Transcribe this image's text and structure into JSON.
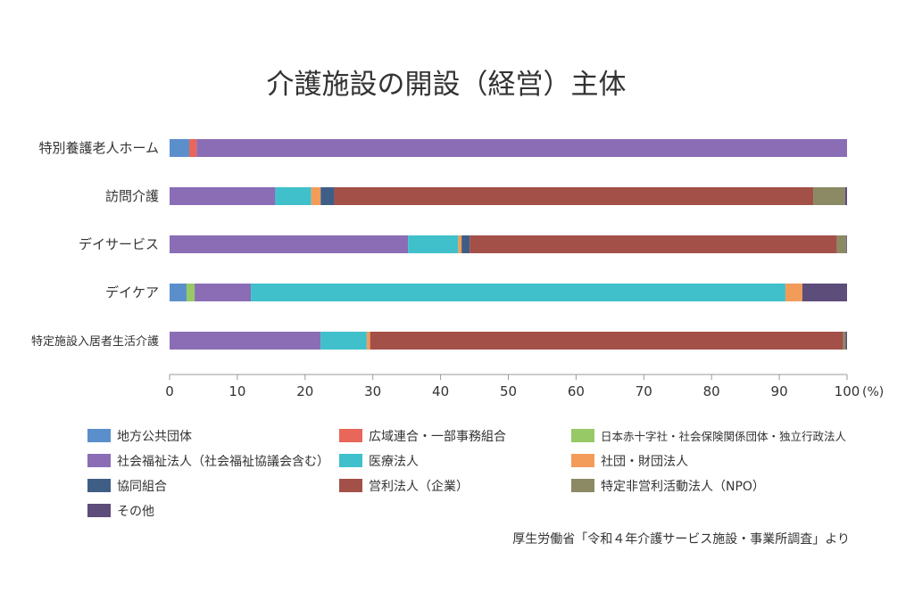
{
  "chart_data": {
    "type": "bar",
    "orientation": "horizontal",
    "stacked": true,
    "title": "介護施設の開設（経営）主体",
    "unit": "(%)",
    "xlim": [
      0,
      100
    ],
    "x_ticks": [
      "0",
      "10",
      "20",
      "30",
      "40",
      "50",
      "60",
      "70",
      "80",
      "90",
      "100"
    ],
    "grid": false,
    "legend_position": "bottom",
    "categories": [
      "特別養護老人ホーム",
      "訪問介護",
      "デイサービス",
      "デイケア",
      "特定施設入居者生活介護"
    ],
    "series": [
      {
        "name": "地方公共団体",
        "color": "#5B8FCB",
        "values": [
          2.9,
          0.0,
          0.0,
          2.5,
          0.0
        ]
      },
      {
        "name": "広域連合・一部事務組合",
        "color": "#E8675A",
        "values": [
          1.1,
          0.0,
          0.0,
          0.0,
          0.0
        ]
      },
      {
        "name": "日本赤十字社・社会保険関係団体・独立行政法人",
        "color": "#97C966",
        "values": [
          0.0,
          0.0,
          0.0,
          1.2,
          0.0
        ]
      },
      {
        "name": "社会福祉法人（社会福祉協議会含む）",
        "color": "#8A6DB5",
        "values": [
          96.0,
          15.6,
          35.2,
          8.3,
          22.3
        ]
      },
      {
        "name": "医療法人",
        "color": "#3FC0CB",
        "values": [
          0.0,
          5.3,
          7.4,
          78.9,
          6.8
        ]
      },
      {
        "name": "社団・財団法人",
        "color": "#F39C5A",
        "values": [
          0.0,
          1.4,
          0.5,
          2.5,
          0.5
        ]
      },
      {
        "name": "協同組合",
        "color": "#3F5E86",
        "values": [
          0.0,
          2.0,
          1.2,
          0.0,
          0.0
        ]
      },
      {
        "name": "営利法人（企業）",
        "color": "#A35049",
        "values": [
          0.0,
          70.7,
          54.2,
          0.0,
          69.8
        ]
      },
      {
        "name": "特定非営利活動法人（NPO）",
        "color": "#8C8A64",
        "values": [
          0.0,
          4.7,
          1.4,
          0.0,
          0.4
        ]
      },
      {
        "name": "その他",
        "color": "#5D4D7A",
        "values": [
          0.0,
          0.3,
          0.1,
          6.6,
          0.2
        ]
      }
    ],
    "source": "厚生労働省「令和４年介護サービス施設・事業所調査」より"
  }
}
